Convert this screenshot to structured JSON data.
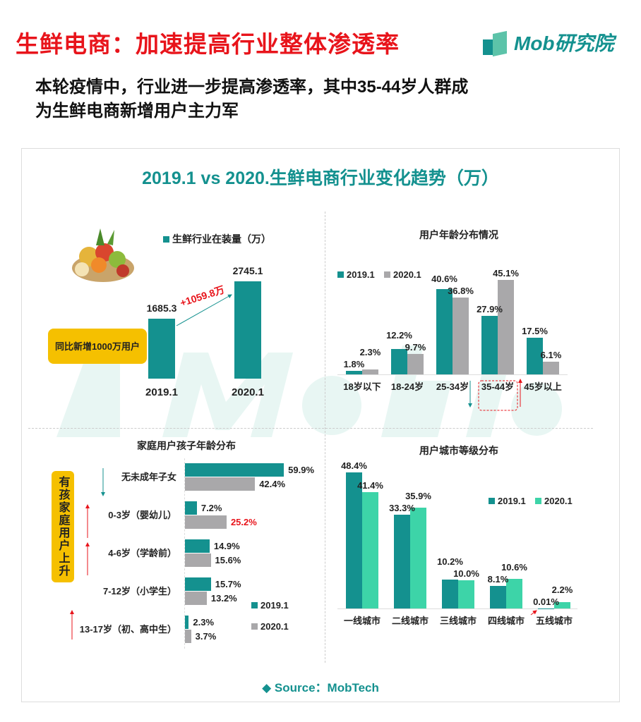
{
  "header": {
    "title": "生鲜电商：加速提高行业整体渗透率",
    "logo_text": "Mob研究院",
    "subtitle_line1": "本轮疫情中，行业进一步提高渗透率，其中35-44岁人群成",
    "subtitle_line2": "为生鲜电商新增用户主力军"
  },
  "card": {
    "title": "2019.1 vs 2020.生鲜电商行业变化趋势（万）",
    "watermark": "MobTech",
    "source": "◆ Source：MobTech"
  },
  "callouts": {
    "installs_box": "同比新增1000万用户",
    "installs_delta": "+1059.8万",
    "family_box": "有孩家庭用户上升"
  },
  "colors": {
    "teal": "#14918F",
    "gray": "#A9A8AA",
    "mint": "#3DD4A8",
    "red": "#E8141B",
    "yellow": "#F5C000"
  },
  "chart_data": [
    {
      "type": "bar",
      "title": "生鲜行业在装量（万）",
      "categories": [
        "2019.1",
        "2020.1"
      ],
      "series": [
        {
          "name": "生鲜行业在装量（万）",
          "values": [
            1685.3,
            2745.1
          ]
        }
      ],
      "value_labels": [
        "1685.3",
        "2745.1"
      ],
      "ylim": [
        0,
        2745.1
      ]
    },
    {
      "type": "bar",
      "title": "用户年龄分布情况",
      "categories": [
        "18岁以下",
        "18-24岁",
        "25-34岁",
        "35-44岁",
        "45岁以上"
      ],
      "series": [
        {
          "name": "2019.1",
          "values": [
            1.8,
            12.2,
            40.6,
            27.9,
            17.5
          ],
          "labels": [
            "1.8%",
            "12.2%",
            "40.6%",
            "27.9%",
            "17.5%"
          ]
        },
        {
          "name": "2020.1",
          "values": [
            2.3,
            9.7,
            36.8,
            45.1,
            6.1
          ],
          "labels": [
            "2.3%",
            "9.7%",
            "36.8%",
            "45.1%",
            "6.1%"
          ]
        }
      ],
      "legend": "top-left"
    },
    {
      "type": "bar",
      "orientation": "horizontal",
      "title": "家庭用户孩子年龄分布",
      "categories": [
        "无未成年子女",
        "0-3岁（婴幼儿）",
        "4-6岁（学龄前）",
        "7-12岁（小学生）",
        "13-17岁（初、高中生）"
      ],
      "series": [
        {
          "name": "2019.1",
          "values": [
            59.9,
            7.2,
            14.9,
            15.7,
            2.3
          ],
          "labels": [
            "59.9%",
            "7.2%",
            "14.9%",
            "15.7%",
            "2.3%"
          ]
        },
        {
          "name": "2020.1",
          "values": [
            42.4,
            25.2,
            15.6,
            13.2,
            3.7
          ],
          "labels": [
            "42.4%",
            "25.2%",
            "15.6%",
            "13.2%",
            "3.7%"
          ]
        }
      ],
      "legend": "bottom-right"
    },
    {
      "type": "bar",
      "title": "用户城市等级分布",
      "categories": [
        "一线城市",
        "二线城市",
        "三线城市",
        "四线城市",
        "五线城市"
      ],
      "series": [
        {
          "name": "2019.1",
          "values": [
            48.4,
            33.3,
            10.2,
            8.1,
            0.01
          ],
          "labels": [
            "48.4%",
            "33.3%",
            "10.2%",
            "8.1%",
            "0.01%"
          ]
        },
        {
          "name": "2020.1",
          "values": [
            41.4,
            35.9,
            10.0,
            10.6,
            2.2
          ],
          "labels": [
            "41.4%",
            "35.9%",
            "10.0%",
            "10.6%",
            "2.2%"
          ]
        }
      ],
      "legend": "top-right"
    }
  ]
}
